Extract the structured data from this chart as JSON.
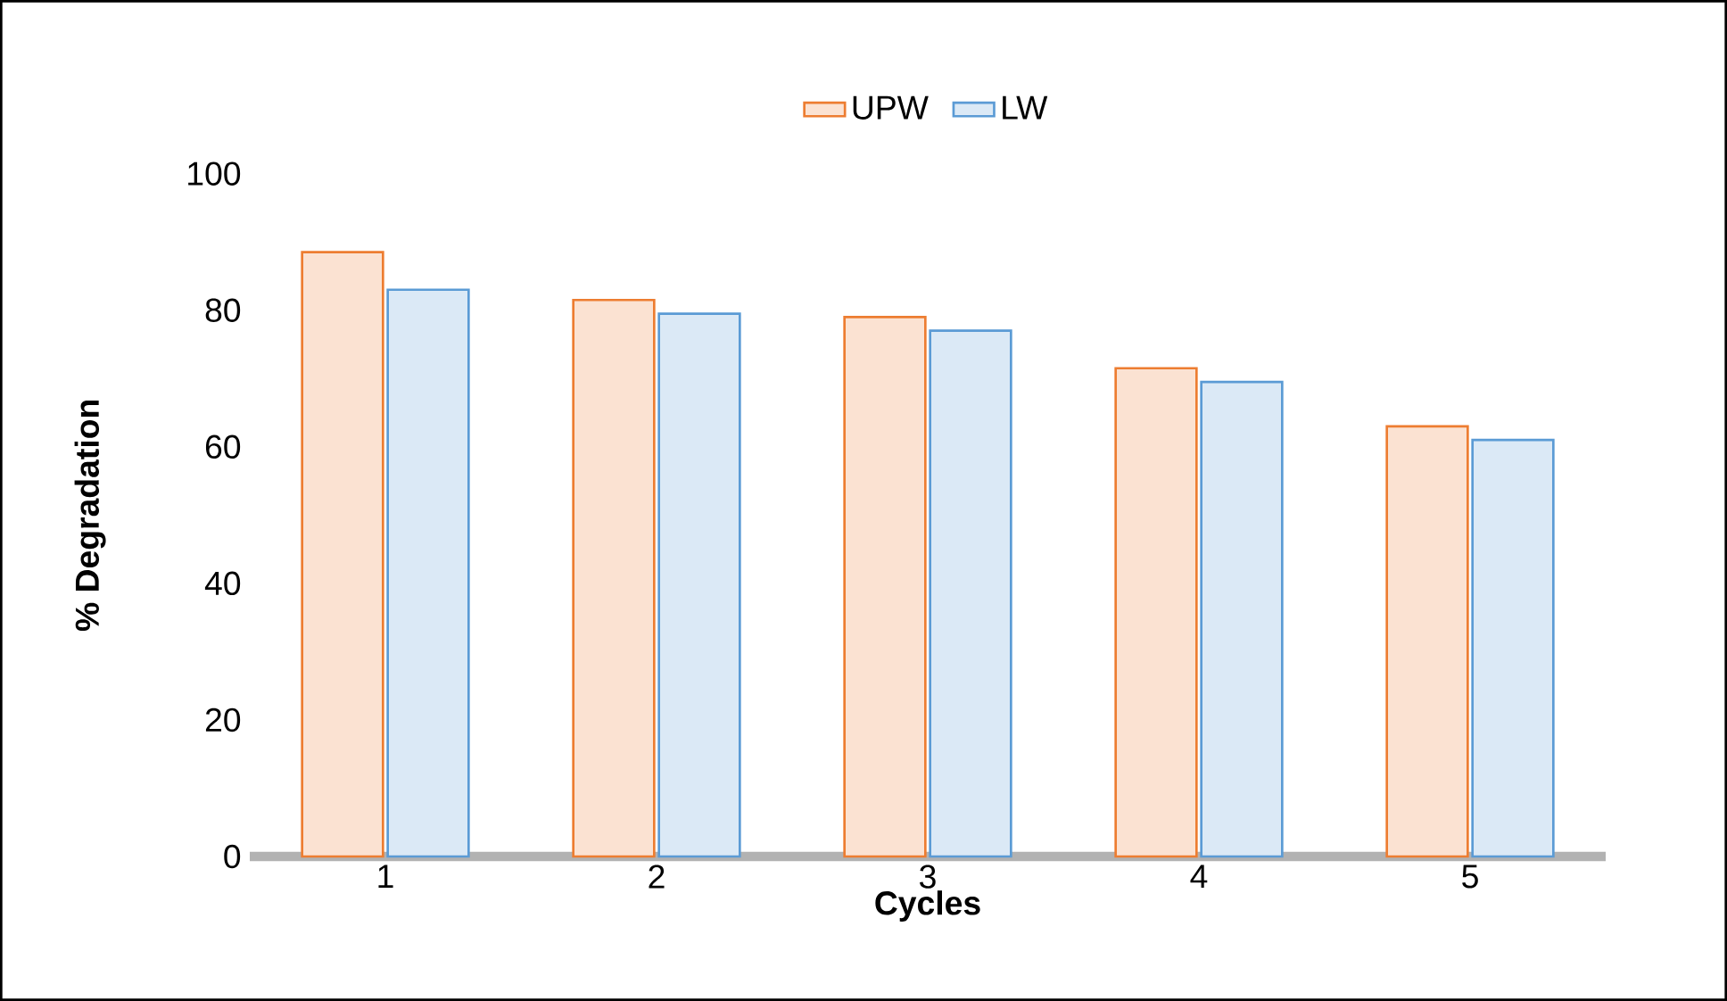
{
  "chart_data": {
    "type": "bar",
    "xlabel": "Cycles",
    "ylabel": "% Degradation",
    "categories": [
      "1",
      "2",
      "3",
      "4",
      "5"
    ],
    "series": [
      {
        "name": "UPW",
        "color": "#ed7d31",
        "values": [
          88.5,
          81.5,
          79,
          71.5,
          63
        ]
      },
      {
        "name": "LW",
        "color": "#5b9bd5",
        "values": [
          83,
          79.5,
          77,
          69.5,
          61
        ]
      }
    ],
    "ylim": [
      0,
      100
    ],
    "yticks": [
      0,
      20,
      40,
      60,
      80,
      100
    ],
    "legend": "top"
  }
}
